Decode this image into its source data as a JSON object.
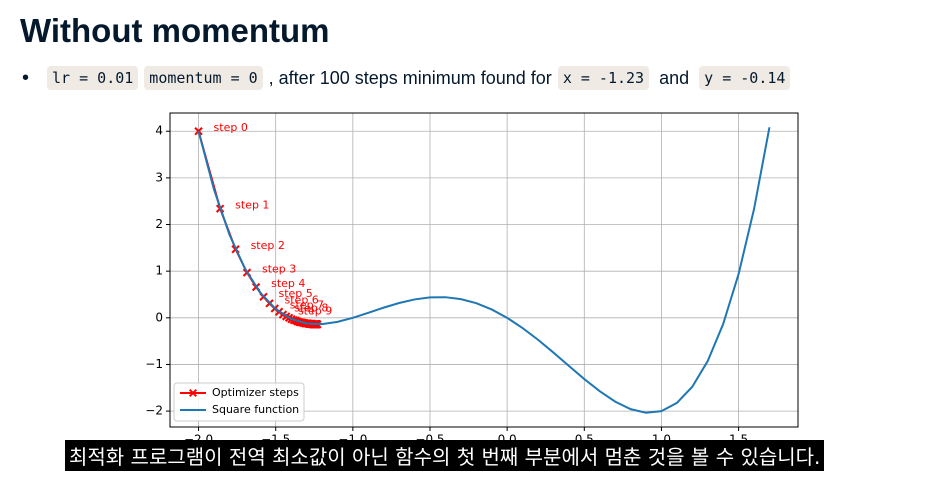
{
  "slide": {
    "title": "Without momentum",
    "bullet": [
      "lr = 0.01",
      "momentum = 0",
      ", after 100 steps minimum found for",
      "x = -1.23",
      "and",
      "y = -0.14"
    ],
    "caption": "최적화 프로그램이 전역 최소값이 아닌 함수의 첫 번째 부분에서 멈춘 것을 볼 수 있습니다."
  },
  "chart_data": {
    "type": "line",
    "xlim": [
      -2.185,
      1.885
    ],
    "ylim": [
      -2.341,
      4.391
    ],
    "xticks": [
      {
        "value": -2,
        "label": "−2.0"
      },
      {
        "value": -1.5,
        "label": "−1.5"
      },
      {
        "value": -1,
        "label": "−1.0"
      },
      {
        "value": -0.5,
        "label": "−0.5"
      },
      {
        "value": 0,
        "label": "0.0"
      },
      0.5,
      {
        "value": 1,
        "label": "1.0"
      },
      1.5
    ],
    "yticks": [
      {
        "value": -2,
        "label": "−2"
      },
      {
        "value": -1,
        "label": "−1"
      },
      0,
      1,
      2,
      3,
      4
    ],
    "grid": true,
    "legend": "lower left",
    "series": [
      {
        "name": "Optimizer steps",
        "color": "#ff0000",
        "marker": "X",
        "x": [
          -2,
          -1.86,
          -1.76,
          -1.686,
          -1.627,
          -1.579,
          -1.54,
          -1.506,
          -1.478,
          -1.453,
          -1.432,
          -1.413,
          -1.397,
          -1.382,
          -1.369,
          -1.358,
          -1.347,
          -1.338,
          -1.329,
          -1.321,
          -1.314,
          -1.308,
          -1.302,
          -1.296,
          -1.291,
          -1.287,
          -1.283,
          -1.279,
          -1.276,
          -1.272,
          -1.269,
          -1.267,
          -1.264,
          -1.262,
          -1.26,
          -1.258,
          -1.256,
          -1.254,
          -1.252,
          -1.251,
          -1.249,
          -1.248,
          -1.247,
          -1.246,
          -1.245,
          -1.244,
          -1.243,
          -1.242,
          -1.241,
          -1.241,
          -1.24,
          -1.24,
          -1.239,
          -1.238,
          -1.238,
          -1.237,
          -1.237,
          -1.236,
          -1.236,
          -1.236,
          -1.235,
          -1.235,
          -1.235,
          -1.235,
          -1.234,
          -1.234,
          -1.234,
          -1.234,
          -1.234,
          -1.233,
          -1.233,
          -1.233,
          -1.233,
          -1.233,
          -1.233,
          -1.233,
          -1.233,
          -1.232,
          -1.232,
          -1.232,
          -1.232,
          -1.232,
          -1.232,
          -1.232,
          -1.232,
          -1.232,
          -1.232,
          -1.232,
          -1.232,
          -1.232,
          -1.232,
          -1.232,
          -1.232,
          -1.232,
          -1.232,
          -1.232,
          -1.232,
          -1.232,
          -1.232,
          -1.232,
          -1.232
        ],
        "values": [
          4,
          2.34,
          1.47,
          0.97,
          0.66,
          0.45,
          0.31,
          0.2,
          0.13,
          0.07,
          0.03,
          0,
          -0.03,
          -0.05,
          -0.06,
          -0.08,
          -0.09,
          -0.1,
          -0.1,
          -0.11,
          -0.11,
          -0.12,
          -0.12,
          -0.12,
          -0.12,
          -0.13,
          -0.13,
          -0.13,
          -0.13,
          -0.13,
          -0.13,
          -0.13,
          -0.13,
          -0.14,
          -0.14,
          -0.14,
          -0.14,
          -0.14,
          -0.14,
          -0.14,
          -0.14,
          -0.14,
          -0.14,
          -0.14,
          -0.14,
          -0.14,
          -0.14,
          -0.14,
          -0.14,
          -0.14,
          -0.14,
          -0.14,
          -0.14,
          -0.14,
          -0.14,
          -0.14,
          -0.14,
          -0.14,
          -0.14,
          -0.14,
          -0.14,
          -0.14,
          -0.14,
          -0.14,
          -0.14,
          -0.14,
          -0.14,
          -0.14,
          -0.14,
          -0.14,
          -0.14,
          -0.14,
          -0.14,
          -0.14,
          -0.14,
          -0.14,
          -0.14,
          -0.14,
          -0.14,
          -0.14,
          -0.14,
          -0.14,
          -0.14,
          -0.14,
          -0.14,
          -0.14,
          -0.14,
          -0.14,
          -0.14,
          -0.14,
          -0.14,
          -0.14,
          -0.14,
          -0.14,
          -0.14,
          -0.14,
          -0.14,
          -0.14,
          -0.14,
          -0.14,
          -0.14
        ]
      },
      {
        "name": "Square function",
        "color": "#1f77b4",
        "x": [
          -2,
          -1.9,
          -1.8,
          -1.7,
          -1.6,
          -1.5,
          -1.4,
          -1.3,
          -1.2,
          -1.1,
          -1,
          -0.9,
          -0.8,
          -0.7,
          -0.6,
          -0.5,
          -0.4,
          -0.3,
          -0.2,
          -0.1,
          0,
          0.1,
          0.2,
          0.3,
          0.4,
          0.5,
          0.6,
          0.7,
          0.8,
          0.9,
          1,
          1.1,
          1.2,
          1.3,
          1.4,
          1.5,
          1.6,
          1.7
        ],
        "values": [
          4,
          2.753,
          1.786,
          1.059,
          0.538,
          0.188,
          -0.022,
          -0.121,
          -0.134,
          -0.087,
          0,
          0.107,
          0.218,
          0.317,
          0.394,
          0.438,
          0.442,
          0.401,
          0.314,
          0.179,
          0,
          -0.219,
          -0.47,
          -0.745,
          -1.03,
          -1.313,
          -1.574,
          -1.797,
          -1.958,
          -2.035,
          -2,
          -1.825,
          -1.478,
          -0.927,
          -0.134,
          0.938,
          2.33,
          4.085
        ]
      }
    ],
    "annotations": [
      "step 0",
      "step 1",
      "step 2",
      "step 3",
      "step 4",
      "step 5",
      "step 6",
      "step 7",
      "step 8",
      "step 9"
    ]
  }
}
